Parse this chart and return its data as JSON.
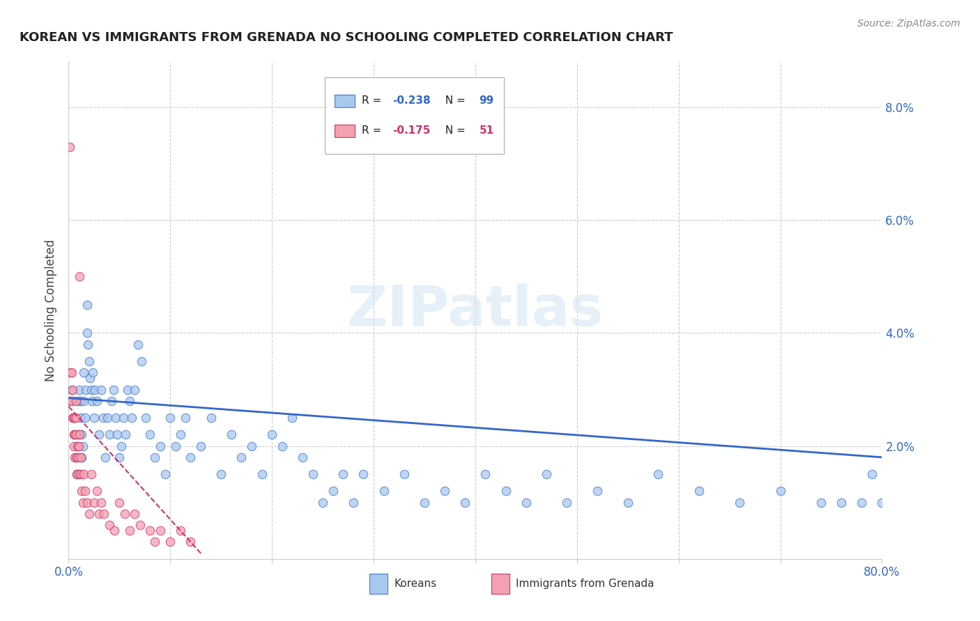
{
  "title": "KOREAN VS IMMIGRANTS FROM GRENADA NO SCHOOLING COMPLETED CORRELATION CHART",
  "source": "Source: ZipAtlas.com",
  "ylabel": "No Schooling Completed",
  "xlim": [
    0,
    0.8
  ],
  "ylim": [
    0,
    0.088
  ],
  "yticks": [
    0.0,
    0.02,
    0.04,
    0.06,
    0.08
  ],
  "xticks": [
    0.0,
    0.1,
    0.2,
    0.3,
    0.4,
    0.5,
    0.6,
    0.7,
    0.8
  ],
  "korean_R": -0.238,
  "korean_N": 99,
  "grenada_R": -0.175,
  "grenada_N": 51,
  "korean_color": "#a8c8f0",
  "grenada_color": "#f5a0b0",
  "korean_edge_color": "#4477cc",
  "grenada_edge_color": "#cc3366",
  "korean_trend_color": "#3366cc",
  "grenada_trend_color": "#cc3366",
  "watermark": "ZIPatlas",
  "background_color": "#ffffff",
  "korean_x": [
    0.003,
    0.005,
    0.006,
    0.007,
    0.008,
    0.008,
    0.009,
    0.01,
    0.01,
    0.011,
    0.011,
    0.012,
    0.012,
    0.013,
    0.013,
    0.014,
    0.015,
    0.015,
    0.016,
    0.017,
    0.018,
    0.018,
    0.019,
    0.02,
    0.021,
    0.022,
    0.023,
    0.024,
    0.025,
    0.026,
    0.028,
    0.03,
    0.032,
    0.034,
    0.036,
    0.038,
    0.04,
    0.042,
    0.044,
    0.046,
    0.048,
    0.05,
    0.052,
    0.054,
    0.056,
    0.058,
    0.06,
    0.062,
    0.065,
    0.068,
    0.072,
    0.076,
    0.08,
    0.085,
    0.09,
    0.095,
    0.1,
    0.105,
    0.11,
    0.115,
    0.12,
    0.13,
    0.14,
    0.15,
    0.16,
    0.17,
    0.18,
    0.19,
    0.2,
    0.21,
    0.22,
    0.23,
    0.24,
    0.25,
    0.26,
    0.27,
    0.28,
    0.29,
    0.31,
    0.33,
    0.35,
    0.37,
    0.39,
    0.41,
    0.43,
    0.45,
    0.47,
    0.49,
    0.52,
    0.55,
    0.58,
    0.62,
    0.66,
    0.7,
    0.74,
    0.76,
    0.78,
    0.79,
    0.8
  ],
  "korean_y": [
    0.03,
    0.025,
    0.022,
    0.018,
    0.02,
    0.015,
    0.022,
    0.028,
    0.015,
    0.03,
    0.022,
    0.025,
    0.028,
    0.022,
    0.018,
    0.02,
    0.033,
    0.028,
    0.025,
    0.03,
    0.045,
    0.04,
    0.038,
    0.035,
    0.032,
    0.03,
    0.028,
    0.033,
    0.025,
    0.03,
    0.028,
    0.022,
    0.03,
    0.025,
    0.018,
    0.025,
    0.022,
    0.028,
    0.03,
    0.025,
    0.022,
    0.018,
    0.02,
    0.025,
    0.022,
    0.03,
    0.028,
    0.025,
    0.03,
    0.038,
    0.035,
    0.025,
    0.022,
    0.018,
    0.02,
    0.015,
    0.025,
    0.02,
    0.022,
    0.025,
    0.018,
    0.02,
    0.025,
    0.015,
    0.022,
    0.018,
    0.02,
    0.015,
    0.022,
    0.02,
    0.025,
    0.018,
    0.015,
    0.01,
    0.012,
    0.015,
    0.01,
    0.015,
    0.012,
    0.015,
    0.01,
    0.012,
    0.01,
    0.015,
    0.012,
    0.01,
    0.015,
    0.01,
    0.012,
    0.01,
    0.015,
    0.012,
    0.01,
    0.012,
    0.01,
    0.01,
    0.01,
    0.015,
    0.01
  ],
  "grenada_x": [
    0.001,
    0.002,
    0.002,
    0.003,
    0.003,
    0.004,
    0.004,
    0.005,
    0.005,
    0.005,
    0.006,
    0.006,
    0.006,
    0.007,
    0.007,
    0.007,
    0.008,
    0.008,
    0.009,
    0.009,
    0.01,
    0.01,
    0.011,
    0.011,
    0.012,
    0.012,
    0.013,
    0.014,
    0.015,
    0.016,
    0.018,
    0.02,
    0.022,
    0.025,
    0.028,
    0.03,
    0.032,
    0.035,
    0.04,
    0.045,
    0.05,
    0.055,
    0.06,
    0.065,
    0.07,
    0.08,
    0.085,
    0.09,
    0.1,
    0.11,
    0.12
  ],
  "grenada_y": [
    0.073,
    0.033,
    0.028,
    0.033,
    0.028,
    0.03,
    0.025,
    0.025,
    0.022,
    0.02,
    0.025,
    0.022,
    0.018,
    0.028,
    0.025,
    0.022,
    0.018,
    0.015,
    0.02,
    0.018,
    0.015,
    0.02,
    0.05,
    0.022,
    0.018,
    0.015,
    0.012,
    0.01,
    0.015,
    0.012,
    0.01,
    0.008,
    0.015,
    0.01,
    0.012,
    0.008,
    0.01,
    0.008,
    0.006,
    0.005,
    0.01,
    0.008,
    0.005,
    0.008,
    0.006,
    0.005,
    0.003,
    0.005,
    0.003,
    0.005,
    0.003
  ],
  "korean_trend_x0": 0.0,
  "korean_trend_y0": 0.0285,
  "korean_trend_x1": 0.8,
  "korean_trend_y1": 0.018,
  "grenada_trend_x0": 0.0,
  "grenada_trend_y0": 0.027,
  "grenada_trend_x1": 0.13,
  "grenada_trend_y1": 0.001,
  "grid_color": "#cccccc",
  "tick_color": "#3366cc",
  "title_fontsize": 13,
  "axis_label_fontsize": 12,
  "marker_size": 80
}
